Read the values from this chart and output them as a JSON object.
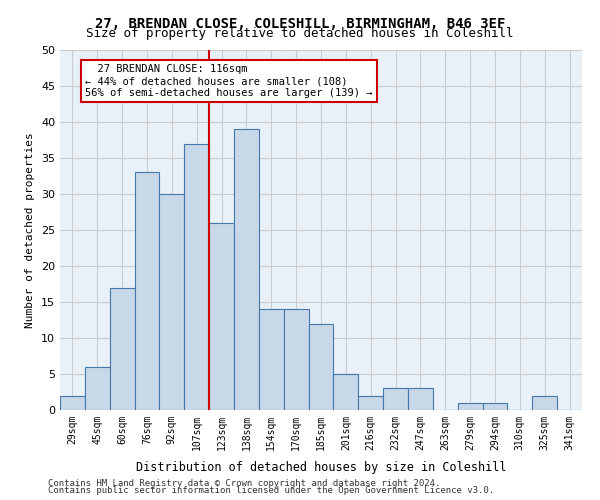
{
  "title_line1": "27, BRENDAN CLOSE, COLESHILL, BIRMINGHAM, B46 3EF",
  "title_line2": "Size of property relative to detached houses in Coleshill",
  "xlabel": "Distribution of detached houses by size in Coleshill",
  "ylabel": "Number of detached properties",
  "footer_line1": "Contains HM Land Registry data © Crown copyright and database right 2024.",
  "footer_line2": "Contains public sector information licensed under the Open Government Licence v3.0.",
  "categories": [
    "29sqm",
    "45sqm",
    "60sqm",
    "76sqm",
    "92sqm",
    "107sqm",
    "123sqm",
    "138sqm",
    "154sqm",
    "170sqm",
    "185sqm",
    "201sqm",
    "216sqm",
    "232sqm",
    "247sqm",
    "263sqm",
    "279sqm",
    "294sqm",
    "310sqm",
    "325sqm",
    "341sqm"
  ],
  "values": [
    2,
    6,
    17,
    33,
    30,
    37,
    26,
    39,
    14,
    14,
    12,
    5,
    2,
    3,
    3,
    0,
    1,
    1,
    0,
    2,
    0
  ],
  "bar_color": "#c8d8e8",
  "bar_edge_color": "#4477aa",
  "property_size": 116,
  "property_label": "27 BRENDAN CLOSE: 116sqm",
  "pct_smaller": 44,
  "n_smaller": 108,
  "pct_larger_semi": 56,
  "n_larger_semi": 139,
  "vline_color": "#cc0000",
  "annotation_box_color": "#cc0000",
  "ylim": [
    0,
    50
  ],
  "yticks": [
    0,
    5,
    10,
    15,
    20,
    25,
    30,
    35,
    40,
    45,
    50
  ],
  "grid_color": "#cccccc",
  "bg_color": "#e8f0f8",
  "vline_x_index": 5.5
}
